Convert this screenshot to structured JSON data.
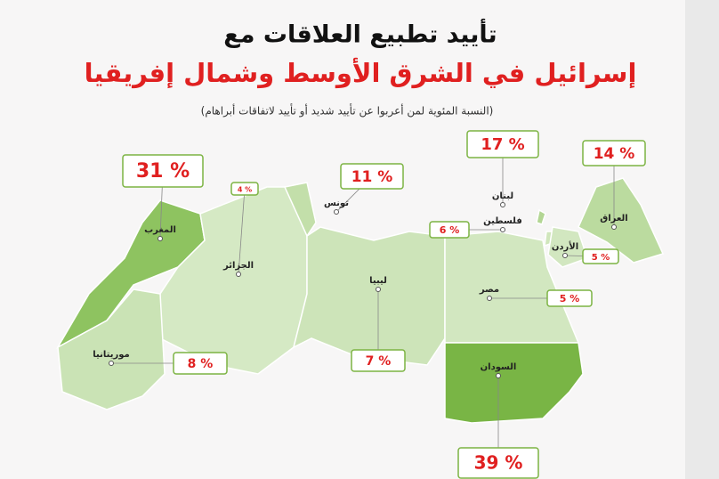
{
  "title": [
    "تأييد تطبيع العلاقات مع",
    "إسرائيل في الشرق الأوسط وشمال إفريقيا"
  ],
  "subtitle": "(النسبة المئوية لمن أعربوا عن تأييد شديد أو تأييد لاتفاقات أبراهام)",
  "regions": [
    {
      "name": "المغرب",
      "value": 31,
      "value_label": "31 %"
    },
    {
      "name": "الجزائر",
      "value": 4,
      "value_label": "4 %"
    },
    {
      "name": "تونس",
      "value": 11,
      "value_label": "11 %"
    },
    {
      "name": "ليبيا",
      "value": 7,
      "value_label": "7 %"
    },
    {
      "name": "موريتانيا",
      "value": 8,
      "value_label": "8 %"
    },
    {
      "name": "مصر",
      "value": 5,
      "value_label": "5 %"
    },
    {
      "name": "السودان",
      "value": 39,
      "value_label": "39 %"
    },
    {
      "name": "لبنان",
      "value": 17,
      "value_label": "17 %"
    },
    {
      "name": "فلسطين",
      "value": 6,
      "value_label": "6 %"
    },
    {
      "name": "الأردن",
      "value": 5,
      "value_label": "5 %"
    },
    {
      "name": "العراق",
      "value": 14,
      "value_label": "14 %"
    }
  ]
}
